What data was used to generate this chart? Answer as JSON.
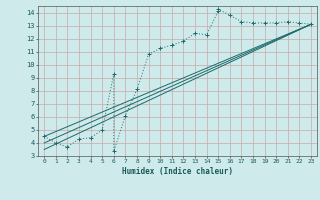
{
  "xlabel": "Humidex (Indice chaleur)",
  "bg_color": "#ceeaea",
  "grid_major_color": "#c8a8a8",
  "grid_minor_color": "#ddc8c8",
  "line_color": "#1a6b6b",
  "xlim": [
    -0.5,
    23.5
  ],
  "ylim": [
    3,
    14.5
  ],
  "xtick_labels": [
    "0",
    "1",
    "2",
    "3",
    "4",
    "5",
    "6",
    "7",
    "8",
    "9",
    "10",
    "11",
    "12",
    "13",
    "14",
    "15",
    "16",
    "17",
    "18",
    "19",
    "20",
    "21",
    "22",
    "23"
  ],
  "xtick_vals": [
    0,
    1,
    2,
    3,
    4,
    5,
    6,
    7,
    8,
    9,
    10,
    11,
    12,
    13,
    14,
    15,
    16,
    17,
    18,
    19,
    20,
    21,
    22,
    23
  ],
  "ytick_vals": [
    3,
    4,
    5,
    6,
    7,
    8,
    9,
    10,
    11,
    12,
    13,
    14
  ],
  "curve_x": [
    0,
    1,
    2,
    3,
    4,
    5,
    6,
    6,
    7,
    8,
    9,
    10,
    11,
    12,
    13,
    14,
    15,
    15,
    16,
    17,
    18,
    19,
    20,
    21,
    22,
    23
  ],
  "curve_y": [
    4.5,
    4.0,
    3.7,
    4.3,
    4.4,
    5.0,
    9.3,
    3.35,
    6.1,
    8.1,
    10.8,
    11.25,
    11.5,
    11.8,
    12.4,
    12.3,
    14.1,
    14.25,
    13.8,
    13.3,
    13.2,
    13.2,
    13.2,
    13.3,
    13.2,
    13.1
  ],
  "straight_lines": [
    {
      "x": [
        0,
        23
      ],
      "y": [
        3.5,
        13.1
      ]
    },
    {
      "x": [
        0,
        23
      ],
      "y": [
        4.0,
        13.1
      ]
    },
    {
      "x": [
        0,
        23
      ],
      "y": [
        4.5,
        13.1
      ]
    }
  ]
}
